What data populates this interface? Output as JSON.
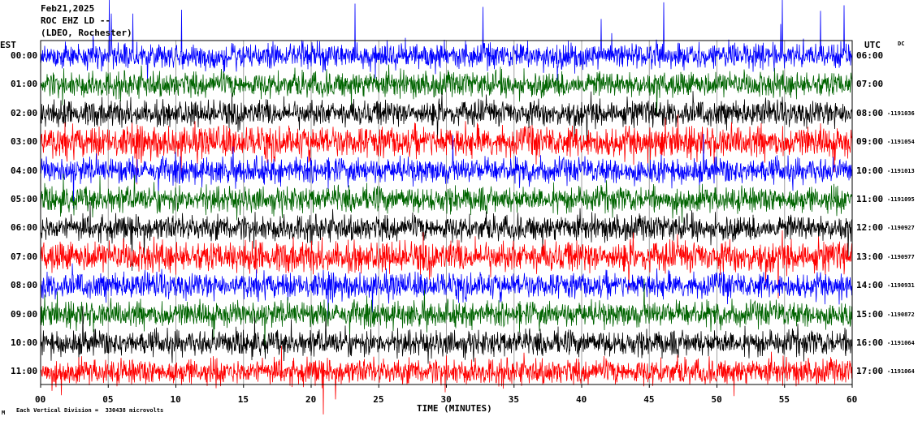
{
  "header": {
    "date": "Feb21,2025",
    "station": "ROC EHZ LD --",
    "network": "(LDEO, Rochester)"
  },
  "left_tz": "EST",
  "right_tz": "UTC",
  "dc_label": "DC",
  "footer": {
    "mark": "M",
    "scale_text": "Each Vertical Division =  330438 microvolts"
  },
  "colors": {
    "background": "#ffffff",
    "frame": "#000000",
    "gridline": "#a0a0a0",
    "trace_cycle": [
      "#0000ff",
      "#006400",
      "#000000",
      "#ff0000"
    ]
  },
  "chart_data": {
    "type": "line",
    "title": "",
    "xlabel": "TIME (MINUTES)",
    "ylabel": "",
    "xlim": [
      0,
      60
    ],
    "x_ticks": [
      "00",
      "05",
      "10",
      "15",
      "20",
      "25",
      "30",
      "35",
      "40",
      "45",
      "50",
      "55",
      "60"
    ],
    "grid": true,
    "rows": [
      {
        "est": "00:00",
        "utc": "06:00",
        "dc": "",
        "color": "#0000ff"
      },
      {
        "est": "01:00",
        "utc": "07:00",
        "dc": "",
        "color": "#006400"
      },
      {
        "est": "02:00",
        "utc": "08:00",
        "dc": "1191036",
        "color": "#000000"
      },
      {
        "est": "03:00",
        "utc": "09:00",
        "dc": "1191054",
        "color": "#ff0000"
      },
      {
        "est": "04:00",
        "utc": "10:00",
        "dc": "1191013",
        "color": "#0000ff"
      },
      {
        "est": "05:00",
        "utc": "11:00",
        "dc": "1191095",
        "color": "#006400"
      },
      {
        "est": "06:00",
        "utc": "12:00",
        "dc": "1190927",
        "color": "#000000"
      },
      {
        "est": "07:00",
        "utc": "13:00",
        "dc": "1190977",
        "color": "#ff0000"
      },
      {
        "est": "08:00",
        "utc": "14:00",
        "dc": "1190931",
        "color": "#0000ff"
      },
      {
        "est": "09:00",
        "utc": "15:00",
        "dc": "1190872",
        "color": "#006400"
      },
      {
        "est": "10:00",
        "utc": "16:00",
        "dc": "1191064",
        "color": "#000000"
      },
      {
        "est": "11:00",
        "utc": "17:00",
        "dc": "1191064",
        "color": "#ff0000"
      }
    ],
    "row_order_drawn": [
      2,
      3,
      4,
      5,
      6,
      7,
      8,
      9,
      10,
      11,
      12,
      13
    ]
  }
}
